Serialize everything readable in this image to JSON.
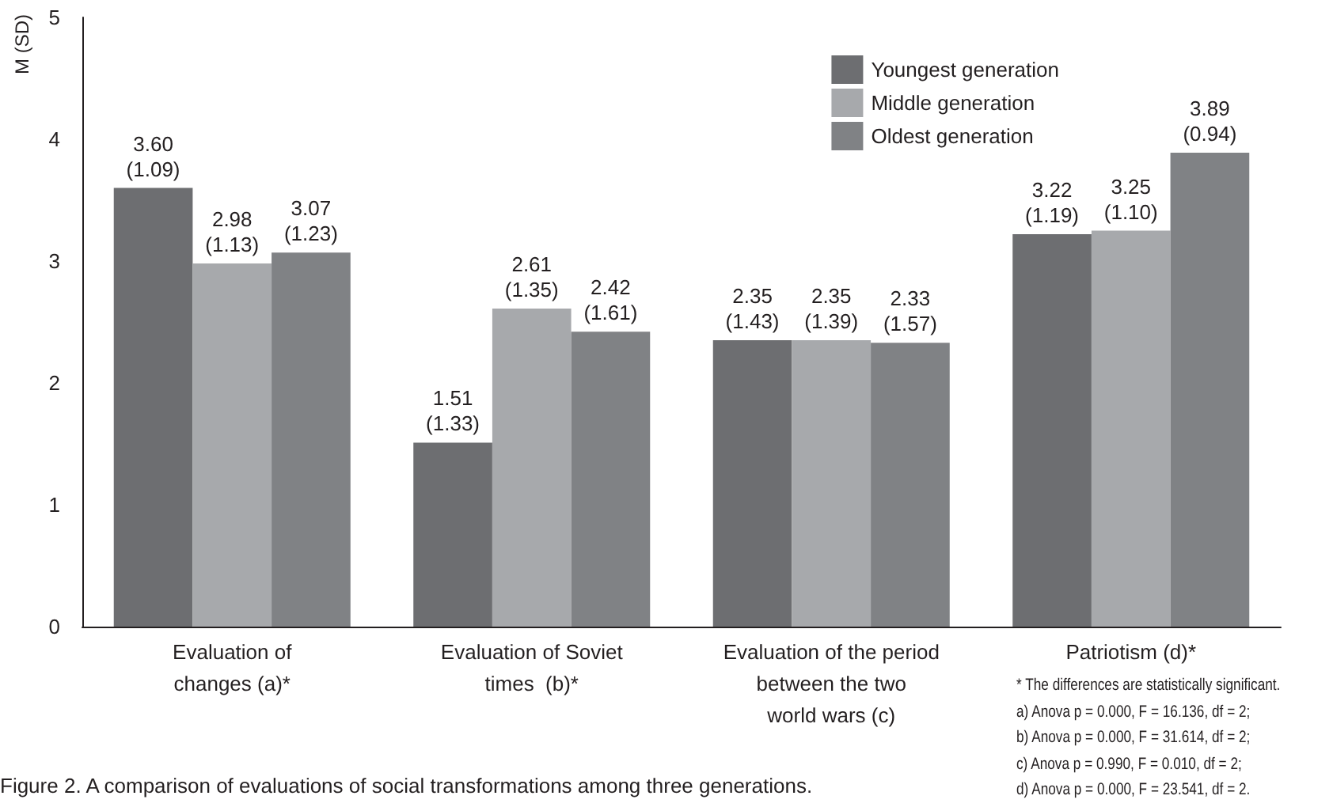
{
  "chart_data": {
    "type": "bar",
    "title": "Figure 2. A comparison of evaluations of social transformations among three generations.",
    "ylabel": "M (SD)",
    "categories": [
      "Evaluation of\nchanges (a)*",
      "Evaluation of Soviet\ntimes  (b)*",
      "Evaluation of the period\nbetween the two\nworld wars (c)",
      "Patriotism (d)*"
    ],
    "series": [
      {
        "name": "Youngest generation",
        "color": "#6d6e71",
        "values": [
          3.6,
          1.51,
          2.35,
          3.22
        ],
        "value_labels": [
          "3.60\n(1.09)",
          "1.51\n(1.33)",
          "2.35\n(1.43)",
          "3.22\n(1.19)"
        ]
      },
      {
        "name": "Middle generation",
        "color": "#a7a9ac",
        "values": [
          2.98,
          2.61,
          2.35,
          3.25
        ],
        "value_labels": [
          "2.98\n(1.13)",
          "2.61\n(1.35)",
          "2.35\n(1.39)",
          "3.25\n(1.10)"
        ]
      },
      {
        "name": "Oldest generation",
        "color": "#808285",
        "values": [
          3.07,
          2.42,
          2.33,
          3.89
        ],
        "value_labels": [
          "3.07\n(1.23)",
          "2.42\n(1.61)",
          "2.33\n(1.57)",
          "3.89\n(0.94)"
        ]
      }
    ],
    "ylim": [
      0,
      5
    ],
    "yticks": [
      0,
      1,
      2,
      3,
      4,
      5
    ],
    "grid": false,
    "legend": "top right",
    "annotations": [
      "* The differences are statistically significant.",
      "a) Anova p = 0.000, F = 16.136, df = 2;",
      "b) Anova p = 0.000, F = 31.614, df = 2;",
      "c) Anova p = 0.990, F = 0.010, df = 2;",
      "d) Anova p = 0.000, F = 23.541, df = 2."
    ]
  }
}
